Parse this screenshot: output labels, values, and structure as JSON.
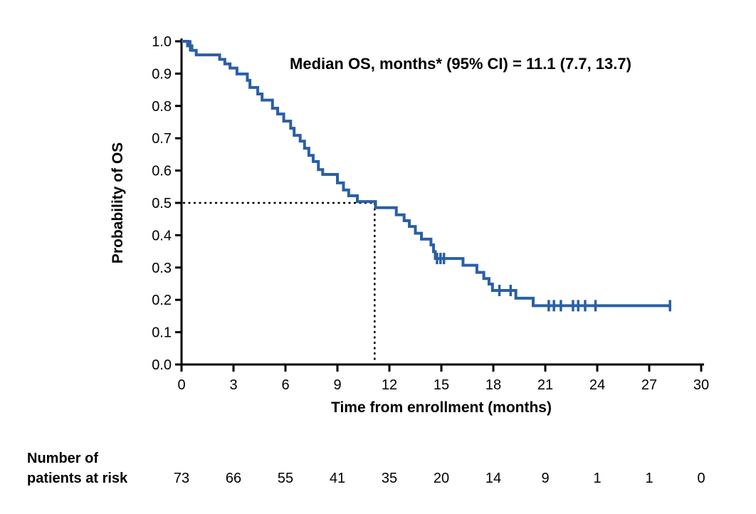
{
  "annotation": {
    "text": "Median OS, months* (95% CI) = 11.1 (7.7, 13.7)"
  },
  "axes": {
    "x_label": "Time from enrollment (months)",
    "y_label": "Probability of OS"
  },
  "risk_table": {
    "header_line1": "Number of",
    "header_line2": "patients at risk",
    "times": [
      0,
      3,
      6,
      9,
      12,
      15,
      18,
      21,
      24,
      27,
      30
    ],
    "values": [
      73,
      66,
      55,
      41,
      35,
      20,
      14,
      9,
      1,
      1,
      0
    ]
  },
  "chart_data": {
    "type": "line",
    "subtype": "kaplan-meier-step",
    "title": "Median OS, months* (95% CI) = 11.1 (7.7, 13.7)",
    "xlabel": "Time from enrollment (months)",
    "ylabel": "Probability of OS",
    "xlim": [
      0,
      30
    ],
    "ylim": [
      0.0,
      1.0
    ],
    "x_ticks": [
      0,
      3,
      6,
      9,
      12,
      15,
      18,
      21,
      24,
      27,
      30
    ],
    "y_ticks": [
      0.0,
      0.1,
      0.2,
      0.3,
      0.4,
      0.5,
      0.6,
      0.7,
      0.8,
      0.9,
      1.0
    ],
    "grid": false,
    "legend": "none",
    "median_os_months": 11.1,
    "ci95_lower": 7.7,
    "ci95_upper": 13.7,
    "line_color": "#2A5FA5",
    "axis_color": "#000000",
    "median_guide": {
      "probability": 0.5,
      "time": 11.15
    },
    "step_points": [
      [
        0,
        1.0
      ],
      [
        0.35,
        0.986
      ],
      [
        0.6,
        0.972
      ],
      [
        0.85,
        0.958
      ],
      [
        2.2,
        0.944
      ],
      [
        2.5,
        0.93
      ],
      [
        2.8,
        0.917
      ],
      [
        3.2,
        0.899
      ],
      [
        3.8,
        0.879
      ],
      [
        3.95,
        0.857
      ],
      [
        4.4,
        0.837
      ],
      [
        4.65,
        0.818
      ],
      [
        5.25,
        0.793
      ],
      [
        5.55,
        0.775
      ],
      [
        5.9,
        0.753
      ],
      [
        6.3,
        0.731
      ],
      [
        6.5,
        0.709
      ],
      [
        6.85,
        0.691
      ],
      [
        7.1,
        0.669
      ],
      [
        7.35,
        0.647
      ],
      [
        7.6,
        0.628
      ],
      [
        7.9,
        0.603
      ],
      [
        8.15,
        0.588
      ],
      [
        9.0,
        0.562
      ],
      [
        9.35,
        0.54
      ],
      [
        9.65,
        0.522
      ],
      [
        10.15,
        0.504
      ],
      [
        11.2,
        0.485
      ],
      [
        12.4,
        0.463
      ],
      [
        12.85,
        0.445
      ],
      [
        13.15,
        0.427
      ],
      [
        13.5,
        0.406
      ],
      [
        13.85,
        0.388
      ],
      [
        14.4,
        0.37
      ],
      [
        14.55,
        0.349
      ],
      [
        14.65,
        0.328
      ],
      [
        16.25,
        0.307
      ],
      [
        17.05,
        0.285
      ],
      [
        17.45,
        0.266
      ],
      [
        17.75,
        0.249
      ],
      [
        17.95,
        0.229
      ],
      [
        19.3,
        0.205
      ],
      [
        20.3,
        0.182
      ]
    ],
    "curve_end_time": 28.2,
    "censor_marks": [
      [
        0.5,
        0.986
      ],
      [
        14.75,
        0.328
      ],
      [
        14.95,
        0.328
      ],
      [
        15.15,
        0.328
      ],
      [
        18.35,
        0.229
      ],
      [
        19.0,
        0.229
      ],
      [
        21.2,
        0.182
      ],
      [
        21.5,
        0.182
      ],
      [
        21.9,
        0.182
      ],
      [
        22.6,
        0.182
      ],
      [
        22.9,
        0.182
      ],
      [
        23.3,
        0.182
      ],
      [
        23.9,
        0.182
      ],
      [
        28.2,
        0.182
      ]
    ],
    "risk_table": {
      "times": [
        0,
        3,
        6,
        9,
        12,
        15,
        18,
        21,
        24,
        27,
        30
      ],
      "values": [
        73,
        66,
        55,
        41,
        35,
        20,
        14,
        9,
        1,
        1,
        0
      ]
    }
  }
}
